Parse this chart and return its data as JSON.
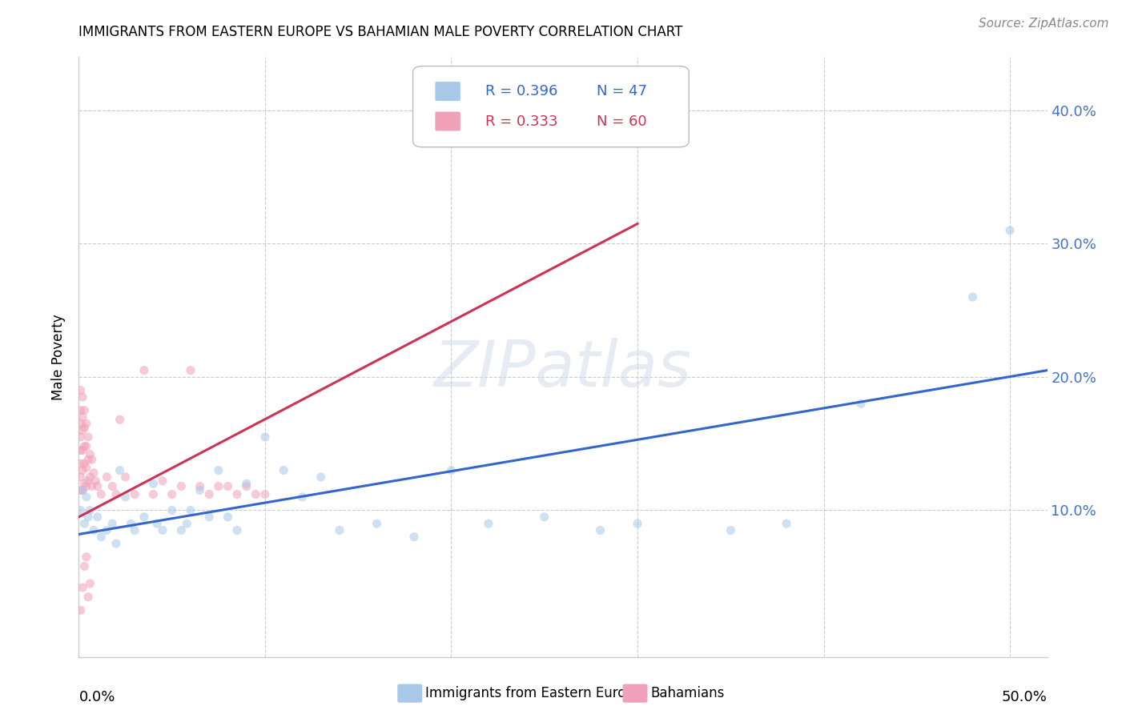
{
  "title": "IMMIGRANTS FROM EASTERN EUROPE VS BAHAMIAN MALE POVERTY CORRELATION CHART",
  "source": "Source: ZipAtlas.com",
  "ylabel": "Male Poverty",
  "yticks": [
    0.0,
    0.1,
    0.2,
    0.3,
    0.4
  ],
  "ytick_labels": [
    "",
    "10.0%",
    "20.0%",
    "30.0%",
    "40.0%"
  ],
  "xlim": [
    0.0,
    0.52
  ],
  "ylim": [
    -0.01,
    0.44
  ],
  "blue_line_x": [
    0.0,
    0.52
  ],
  "blue_line_y": [
    0.082,
    0.205
  ],
  "pink_line_x": [
    0.0,
    0.3
  ],
  "pink_line_y": [
    0.095,
    0.315
  ],
  "blue_scatter_x": [
    0.001,
    0.002,
    0.003,
    0.004,
    0.005,
    0.006,
    0.008,
    0.01,
    0.012,
    0.015,
    0.018,
    0.02,
    0.022,
    0.025,
    0.028,
    0.03,
    0.035,
    0.04,
    0.042,
    0.045,
    0.05,
    0.055,
    0.058,
    0.06,
    0.065,
    0.07,
    0.075,
    0.08,
    0.085,
    0.09,
    0.1,
    0.11,
    0.12,
    0.13,
    0.14,
    0.16,
    0.18,
    0.2,
    0.22,
    0.25,
    0.28,
    0.3,
    0.35,
    0.38,
    0.42,
    0.5,
    0.48
  ],
  "blue_scatter_y": [
    0.1,
    0.115,
    0.09,
    0.11,
    0.095,
    0.1,
    0.085,
    0.095,
    0.08,
    0.085,
    0.09,
    0.075,
    0.13,
    0.11,
    0.09,
    0.085,
    0.095,
    0.12,
    0.09,
    0.085,
    0.1,
    0.085,
    0.09,
    0.1,
    0.115,
    0.095,
    0.13,
    0.095,
    0.085,
    0.12,
    0.155,
    0.13,
    0.11,
    0.125,
    0.085,
    0.09,
    0.08,
    0.13,
    0.09,
    0.095,
    0.085,
    0.09,
    0.085,
    0.09,
    0.18,
    0.31,
    0.26
  ],
  "pink_scatter_x": [
    0.001,
    0.001,
    0.001,
    0.001,
    0.001,
    0.001,
    0.001,
    0.001,
    0.002,
    0.002,
    0.002,
    0.002,
    0.002,
    0.002,
    0.003,
    0.003,
    0.003,
    0.003,
    0.003,
    0.004,
    0.004,
    0.004,
    0.004,
    0.005,
    0.005,
    0.005,
    0.006,
    0.006,
    0.007,
    0.007,
    0.008,
    0.009,
    0.01,
    0.012,
    0.015,
    0.018,
    0.02,
    0.022,
    0.025,
    0.03,
    0.035,
    0.04,
    0.045,
    0.05,
    0.055,
    0.06,
    0.065,
    0.07,
    0.075,
    0.08,
    0.085,
    0.09,
    0.095,
    0.1,
    0.001,
    0.002,
    0.003,
    0.004,
    0.005,
    0.006
  ],
  "pink_scatter_y": [
    0.115,
    0.125,
    0.135,
    0.145,
    0.155,
    0.165,
    0.175,
    0.19,
    0.115,
    0.13,
    0.145,
    0.16,
    0.17,
    0.185,
    0.12,
    0.135,
    0.148,
    0.162,
    0.175,
    0.118,
    0.132,
    0.148,
    0.165,
    0.122,
    0.138,
    0.155,
    0.125,
    0.142,
    0.118,
    0.138,
    0.128,
    0.122,
    0.118,
    0.112,
    0.125,
    0.118,
    0.112,
    0.168,
    0.125,
    0.112,
    0.205,
    0.112,
    0.122,
    0.112,
    0.118,
    0.205,
    0.118,
    0.112,
    0.118,
    0.118,
    0.112,
    0.118,
    0.112,
    0.112,
    0.025,
    0.042,
    0.058,
    0.065,
    0.035,
    0.045
  ],
  "watermark": "ZIPatlas",
  "blue_color": "#a8c8e8",
  "pink_color": "#f0a0b8",
  "blue_line_color": "#3366cc",
  "pink_line_color": "#cc3355",
  "scatter_alpha": 0.55,
  "scatter_size": 65,
  "title_fontsize": 12,
  "source_fontsize": 11,
  "ylabel_fontsize": 12,
  "tick_fontsize": 13
}
